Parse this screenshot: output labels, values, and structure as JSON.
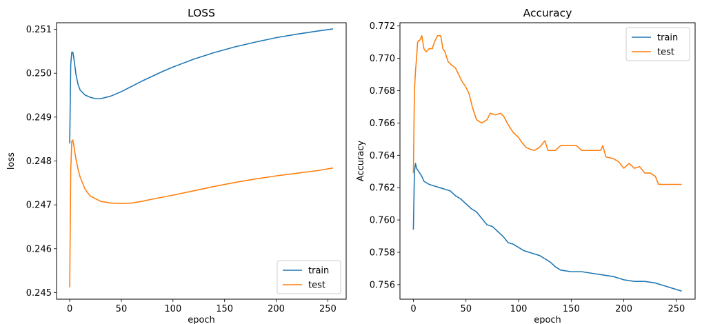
{
  "chart_data": [
    {
      "type": "line",
      "title": "LOSS",
      "xlabel": "epoch",
      "ylabel": "loss",
      "xlim": [
        -12.75,
        267.75
      ],
      "ylim": [
        0.24485,
        0.25115
      ],
      "xticks": [
        0,
        50,
        100,
        150,
        200,
        250
      ],
      "yticks": [
        0.245,
        0.246,
        0.247,
        0.248,
        0.249,
        0.25,
        0.251
      ],
      "ytick_labels": [
        "0.245",
        "0.246",
        "0.247",
        "0.248",
        "0.249",
        "0.250",
        "0.251"
      ],
      "grid": false,
      "legend_position": "lower right",
      "series": [
        {
          "name": "train",
          "color": "#1f77b4",
          "points": [
            [
              0,
              0.2484
            ],
            [
              1,
              0.2502
            ],
            [
              2,
              0.25048
            ],
            [
              3,
              0.25048
            ],
            [
              4,
              0.25035
            ],
            [
              6,
              0.24998
            ],
            [
              8,
              0.24975
            ],
            [
              10,
              0.24962
            ],
            [
              15,
              0.2495
            ],
            [
              20,
              0.24945
            ],
            [
              25,
              0.24942
            ],
            [
              30,
              0.24942
            ],
            [
              40,
              0.24948
            ],
            [
              50,
              0.24958
            ],
            [
              60,
              0.2497
            ],
            [
              70,
              0.24982
            ],
            [
              80,
              0.24993
            ],
            [
              90,
              0.25004
            ],
            [
              100,
              0.25014
            ],
            [
              120,
              0.25032
            ],
            [
              140,
              0.25047
            ],
            [
              160,
              0.2506
            ],
            [
              180,
              0.25071
            ],
            [
              200,
              0.25081
            ],
            [
              220,
              0.25089
            ],
            [
              240,
              0.25096
            ],
            [
              255,
              0.25101
            ]
          ]
        },
        {
          "name": "test",
          "color": "#ff7f0e",
          "points": [
            [
              0,
              0.24512
            ],
            [
              1,
              0.2478
            ],
            [
              2,
              0.24845
            ],
            [
              3,
              0.24848
            ],
            [
              4,
              0.24835
            ],
            [
              6,
              0.24805
            ],
            [
              8,
              0.24782
            ],
            [
              10,
              0.24764
            ],
            [
              15,
              0.24735
            ],
            [
              20,
              0.2472
            ],
            [
              30,
              0.24708
            ],
            [
              40,
              0.24704
            ],
            [
              50,
              0.24703
            ],
            [
              60,
              0.24704
            ],
            [
              70,
              0.24708
            ],
            [
              80,
              0.24713
            ],
            [
              100,
              0.24722
            ],
            [
              120,
              0.24732
            ],
            [
              140,
              0.24742
            ],
            [
              160,
              0.24751
            ],
            [
              180,
              0.24759
            ],
            [
              200,
              0.24766
            ],
            [
              220,
              0.24772
            ],
            [
              240,
              0.24778
            ],
            [
              255,
              0.24784
            ]
          ]
        }
      ]
    },
    {
      "type": "line",
      "title": "Accuracy",
      "xlabel": "epoch",
      "ylabel": "Accuracy",
      "xlim": [
        -12.75,
        267.75
      ],
      "ylim": [
        0.7551,
        0.7722
      ],
      "xticks": [
        0,
        50,
        100,
        150,
        200,
        250
      ],
      "yticks": [
        0.756,
        0.758,
        0.76,
        0.762,
        0.764,
        0.766,
        0.768,
        0.77,
        0.772
      ],
      "ytick_labels": [
        "0.756",
        "0.758",
        "0.760",
        "0.762",
        "0.764",
        "0.766",
        "0.768",
        "0.770",
        "0.772"
      ],
      "grid": false,
      "legend_position": "upper right",
      "series": [
        {
          "name": "train",
          "color": "#1f77b4",
          "points": [
            [
              0,
              0.7594
            ],
            [
              1,
              0.763
            ],
            [
              2,
              0.7635
            ],
            [
              3,
              0.7632
            ],
            [
              5,
              0.763
            ],
            [
              8,
              0.7627
            ],
            [
              10,
              0.7624
            ],
            [
              15,
              0.7622
            ],
            [
              20,
              0.7621
            ],
            [
              25,
              0.762
            ],
            [
              30,
              0.7619
            ],
            [
              35,
              0.7618
            ],
            [
              40,
              0.7615
            ],
            [
              45,
              0.7613
            ],
            [
              50,
              0.761
            ],
            [
              55,
              0.7607
            ],
            [
              60,
              0.7605
            ],
            [
              65,
              0.7601
            ],
            [
              70,
              0.7597
            ],
            [
              75,
              0.7596
            ],
            [
              80,
              0.7593
            ],
            [
              85,
              0.759
            ],
            [
              90,
              0.7586
            ],
            [
              95,
              0.7585
            ],
            [
              100,
              0.7583
            ],
            [
              105,
              0.7581
            ],
            [
              110,
              0.758
            ],
            [
              115,
              0.7579
            ],
            [
              120,
              0.7578
            ],
            [
              125,
              0.7576
            ],
            [
              130,
              0.7574
            ],
            [
              135,
              0.7571
            ],
            [
              140,
              0.7569
            ],
            [
              150,
              0.7568
            ],
            [
              160,
              0.7568
            ],
            [
              170,
              0.7567
            ],
            [
              180,
              0.7566
            ],
            [
              190,
              0.7565
            ],
            [
              200,
              0.7563
            ],
            [
              210,
              0.7562
            ],
            [
              220,
              0.7562
            ],
            [
              230,
              0.7561
            ],
            [
              240,
              0.7559
            ],
            [
              250,
              0.7557
            ],
            [
              255,
              0.7556
            ]
          ]
        },
        {
          "name": "test",
          "color": "#ff7f0e",
          "points": [
            [
              0,
              0.7629
            ],
            [
              1,
              0.768
            ],
            [
              2,
              0.7692
            ],
            [
              3,
              0.77
            ],
            [
              4,
              0.771
            ],
            [
              5,
              0.7711
            ],
            [
              6,
              0.7711
            ],
            [
              8,
              0.7714
            ],
            [
              10,
              0.7706
            ],
            [
              12,
              0.7704
            ],
            [
              15,
              0.7706
            ],
            [
              18,
              0.7706
            ],
            [
              20,
              0.771
            ],
            [
              23,
              0.7714
            ],
            [
              26,
              0.7714
            ],
            [
              28,
              0.7706
            ],
            [
              30,
              0.7704
            ],
            [
              33,
              0.7698
            ],
            [
              36,
              0.7696
            ],
            [
              40,
              0.7694
            ],
            [
              43,
              0.769
            ],
            [
              46,
              0.7686
            ],
            [
              50,
              0.7682
            ],
            [
              53,
              0.7678
            ],
            [
              56,
              0.767
            ],
            [
              60,
              0.7662
            ],
            [
              65,
              0.766
            ],
            [
              70,
              0.7662
            ],
            [
              73,
              0.7666
            ],
            [
              78,
              0.7665
            ],
            [
              83,
              0.7666
            ],
            [
              86,
              0.7664
            ],
            [
              90,
              0.7659
            ],
            [
              95,
              0.7654
            ],
            [
              100,
              0.7651
            ],
            [
              103,
              0.7648
            ],
            [
              107,
              0.7645
            ],
            [
              110,
              0.7644
            ],
            [
              115,
              0.7643
            ],
            [
              120,
              0.7645
            ],
            [
              125,
              0.7649
            ],
            [
              128,
              0.7643
            ],
            [
              135,
              0.7643
            ],
            [
              140,
              0.7646
            ],
            [
              145,
              0.7646
            ],
            [
              150,
              0.7646
            ],
            [
              155,
              0.7646
            ],
            [
              160,
              0.7643
            ],
            [
              170,
              0.7643
            ],
            [
              178,
              0.7643
            ],
            [
              180,
              0.7646
            ],
            [
              183,
              0.7639
            ],
            [
              190,
              0.7638
            ],
            [
              195,
              0.7636
            ],
            [
              200,
              0.7632
            ],
            [
              205,
              0.7635
            ],
            [
              210,
              0.7632
            ],
            [
              215,
              0.7633
            ],
            [
              220,
              0.7629
            ],
            [
              225,
              0.7629
            ],
            [
              230,
              0.7627
            ],
            [
              233,
              0.7622
            ],
            [
              240,
              0.7622
            ],
            [
              250,
              0.7622
            ],
            [
              255,
              0.7622
            ]
          ]
        }
      ]
    }
  ]
}
